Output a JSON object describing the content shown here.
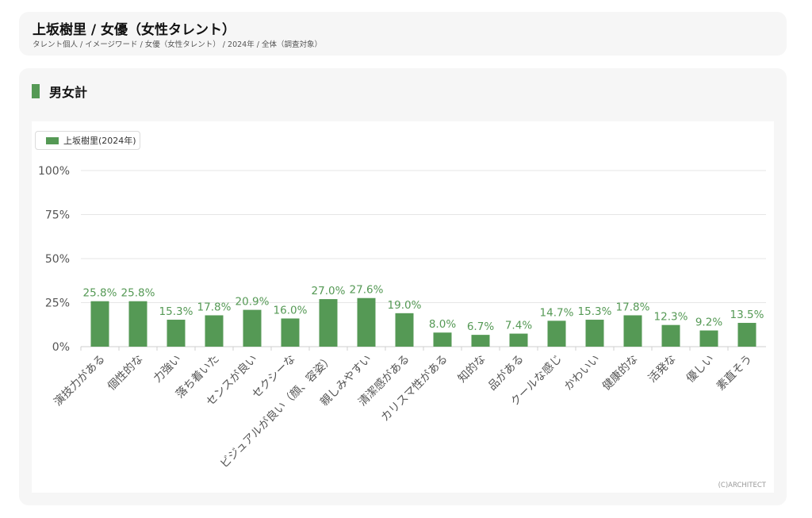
{
  "header": {
    "title": "上坂樹里 / 女優（女性タレント）",
    "breadcrumb": "タレント個人 / イメージワード / 女優（女性タレント） / 2024年 / 全体（調査対象）"
  },
  "section": {
    "title": "男女計"
  },
  "footer": {
    "copyright": "(C)ARCHITECT"
  },
  "colors": {
    "bar": "#559955",
    "value_label": "#559955",
    "axis_text": "#555555",
    "grid": "#e6e6e6"
  },
  "chart_data": {
    "type": "bar",
    "categories": [
      "演技力がある",
      "個性的な",
      "力強い",
      "落ち着いた",
      "センスが良い",
      "セクシーな",
      "ビジュアルが良い（顔、容姿）",
      "親しみやすい",
      "清潔感がある",
      "カリスマ性がある",
      "知的な",
      "品がある",
      "クールな感じ",
      "かわいい",
      "健康的な",
      "活発な",
      "優しい",
      "素直そう"
    ],
    "series": [
      {
        "name": "上坂樹里(2024年)",
        "values": [
          25.8,
          25.8,
          15.3,
          17.8,
          20.9,
          16.0,
          27.0,
          27.6,
          19.0,
          8.0,
          6.7,
          7.4,
          14.7,
          15.3,
          17.8,
          12.3,
          9.2,
          13.5
        ]
      }
    ],
    "value_labels": [
      "25.8%",
      "25.8%",
      "15.3%",
      "17.8%",
      "20.9%",
      "16.0%",
      "27.0%",
      "27.6%",
      "19.0%",
      "8.0%",
      "6.7%",
      "7.4%",
      "14.7%",
      "15.3%",
      "17.8%",
      "12.3%",
      "9.2%",
      "13.5%"
    ],
    "yticks": [
      0,
      25,
      50,
      75,
      100
    ],
    "ytick_labels": [
      "0%",
      "25%",
      "50%",
      "75%",
      "100%"
    ],
    "ylim": [
      0,
      100
    ],
    "legend_position": "top-left",
    "grid": true
  }
}
